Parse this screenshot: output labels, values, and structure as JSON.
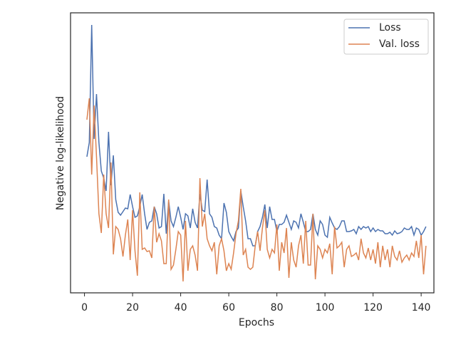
{
  "chart_data": {
    "type": "line",
    "xlabel": "Epochs",
    "ylabel": "Negative log-likelihood",
    "x": [
      1,
      2,
      3,
      4,
      5,
      6,
      7,
      8,
      9,
      10,
      11,
      12,
      13,
      14,
      15,
      16,
      17,
      18,
      19,
      20,
      21,
      22,
      23,
      24,
      25,
      26,
      27,
      28,
      29,
      30,
      31,
      32,
      33,
      34,
      35,
      36,
      37,
      38,
      39,
      40,
      41,
      42,
      43,
      44,
      45,
      46,
      47,
      48,
      49,
      50,
      51,
      52,
      53,
      54,
      55,
      56,
      57,
      58,
      59,
      60,
      61,
      62,
      63,
      64,
      65,
      66,
      67,
      68,
      69,
      70,
      71,
      72,
      73,
      74,
      75,
      76,
      77,
      78,
      79,
      80,
      81,
      82,
      83,
      84,
      85,
      86,
      87,
      88,
      89,
      90,
      91,
      92,
      93,
      94,
      95,
      96,
      97,
      98,
      99,
      100,
      101,
      102,
      103,
      104,
      105,
      106,
      107,
      108,
      109,
      110,
      111,
      112,
      113,
      114,
      115,
      116,
      117,
      118,
      119,
      120,
      121,
      122,
      123,
      124,
      125,
      126,
      127,
      128,
      129,
      130,
      131,
      132,
      133,
      134,
      135,
      136,
      137,
      138,
      139,
      140,
      141,
      142
    ],
    "series": [
      {
        "name": "Loss",
        "color": "#4c72b0",
        "values": [
          191,
          211,
          376,
          216,
          279,
          211,
          171,
          161,
          143,
          226,
          151,
          193,
          131,
          113,
          109,
          114,
          119,
          118,
          138,
          121,
          106,
          108,
          121,
          138,
          111,
          89,
          99,
          101,
          121,
          111,
          91,
          93,
          139,
          83,
          129,
          101,
          93,
          106,
          121,
          106,
          89,
          111,
          108,
          91,
          118,
          99,
          91,
          139,
          116,
          114,
          159,
          111,
          106,
          93,
          91,
          81,
          76,
          126,
          113,
          86,
          79,
          73,
          86,
          91,
          143,
          121,
          101,
          76,
          76,
          66,
          66,
          86,
          93,
          106,
          124,
          91,
          121,
          103,
          103,
          86,
          96,
          96,
          99,
          109,
          99,
          89,
          101,
          99,
          91,
          111,
          99,
          86,
          86,
          89,
          111,
          89,
          81,
          101,
          96,
          81,
          78,
          106,
          98,
          91,
          89,
          93,
          101,
          101,
          86,
          86,
          87,
          89,
          83,
          93,
          89,
          93,
          91,
          93,
          86,
          91,
          86,
          89,
          87,
          87,
          83,
          83,
          85,
          81,
          87,
          83,
          84,
          86,
          91,
          89,
          89,
          93,
          81,
          91,
          89,
          81,
          86,
          93
        ]
      },
      {
        "name": "Val. loss",
        "color": "#dd8452",
        "values": [
          243,
          273,
          166,
          263,
          191,
          111,
          84,
          166,
          111,
          91,
          183,
          54,
          93,
          89,
          76,
          51,
          81,
          103,
          46,
          116,
          59,
          24,
          141,
          61,
          63,
          58,
          59,
          49,
          121,
          71,
          83,
          73,
          41,
          41,
          131,
          33,
          39,
          61,
          86,
          81,
          16,
          101,
          31,
          61,
          66,
          53,
          31,
          161,
          93,
          111,
          76,
          66,
          59,
          71,
          26,
          66,
          76,
          59,
          31,
          41,
          33,
          56,
          83,
          101,
          146,
          53,
          61,
          36,
          33,
          36,
          66,
          86,
          59,
          91,
          116,
          61,
          49,
          61,
          56,
          96,
          31,
          71,
          56,
          91,
          21,
          71,
          46,
          36,
          66,
          81,
          41,
          101,
          39,
          39,
          111,
          19,
          66,
          61,
          49,
          61,
          56,
          69,
          26,
          93,
          63,
          66,
          71,
          36,
          61,
          66,
          51,
          53,
          56,
          46,
          76,
          56,
          49,
          63,
          46,
          61,
          41,
          71,
          36,
          66,
          46,
          61,
          36,
          66,
          51,
          46,
          59,
          43,
          49,
          53,
          46,
          56,
          51,
          73,
          49,
          81,
          26,
          66
        ]
      }
    ],
    "xlim": [
      -5.8,
      145.3
    ],
    "xticks": [
      0,
      20,
      40,
      60,
      80,
      100,
      120,
      140
    ],
    "ylim": [
      0,
      393
    ],
    "legend": "upper right"
  }
}
